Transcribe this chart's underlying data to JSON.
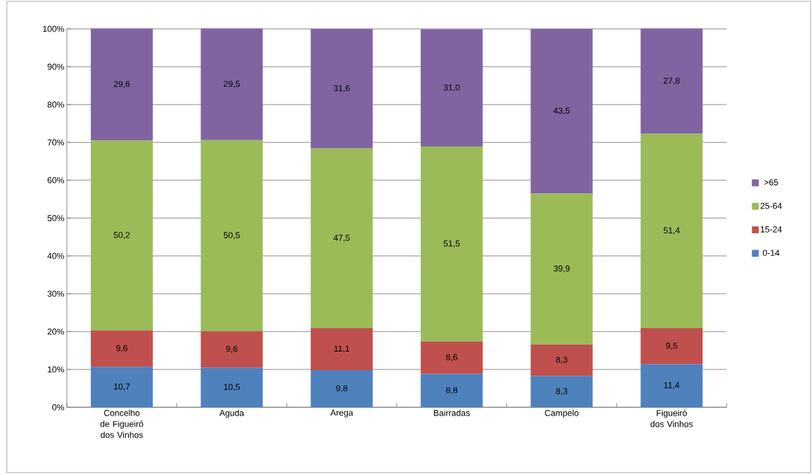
{
  "chart_data": {
    "type": "bar",
    "stacked": true,
    "categories": [
      "Concelho de Figueiró dos Vinhos",
      "Aguda",
      "Arega",
      "Bairradas",
      "Campelo",
      "Figueiró dos Vinhos"
    ],
    "series": [
      {
        "name": "0-14",
        "color": "#4f81bd",
        "values": [
          10.7,
          10.5,
          9.8,
          8.8,
          8.3,
          11.4
        ],
        "value_labels": [
          "10,7",
          "10,5",
          "9,8",
          "8,8",
          "8,3",
          "11,4"
        ]
      },
      {
        "name": "15-24",
        "color": "#c0504d",
        "values": [
          9.6,
          9.6,
          11.1,
          8.6,
          8.3,
          9.5
        ],
        "value_labels": [
          "9,6",
          "9,6",
          "11,1",
          "8,6",
          "8,3",
          "9,5"
        ]
      },
      {
        "name": "25-64",
        "color": "#9bbb59",
        "values": [
          50.2,
          50.5,
          47.5,
          51.5,
          39.9,
          51.4
        ],
        "value_labels": [
          "50,2",
          "50,5",
          "47,5",
          "51,5",
          "39,9",
          "51,4"
        ]
      },
      {
        "name": ">65",
        "color": "#8064a2",
        "values": [
          29.6,
          29.5,
          31.6,
          31.0,
          43.5,
          27.8
        ],
        "value_labels": [
          "29,6",
          "29,5",
          "31,6",
          "31,0",
          "43,5",
          "27,8"
        ]
      }
    ],
    "ylim": [
      0,
      100
    ],
    "yticks": [
      {
        "value": 0,
        "label": "0%"
      },
      {
        "value": 10,
        "label": "10%"
      },
      {
        "value": 20,
        "label": "20%"
      },
      {
        "value": 30,
        "label": "30%"
      },
      {
        "value": 40,
        "label": "40%"
      },
      {
        "value": 50,
        "label": "50%"
      },
      {
        "value": 60,
        "label": "60%"
      },
      {
        "value": 70,
        "label": "70%"
      },
      {
        "value": 80,
        "label": "80%"
      },
      {
        "value": 90,
        "label": "90%"
      },
      {
        "value": 100,
        "label": "100%"
      }
    ],
    "grid": "y",
    "legend": "right"
  }
}
